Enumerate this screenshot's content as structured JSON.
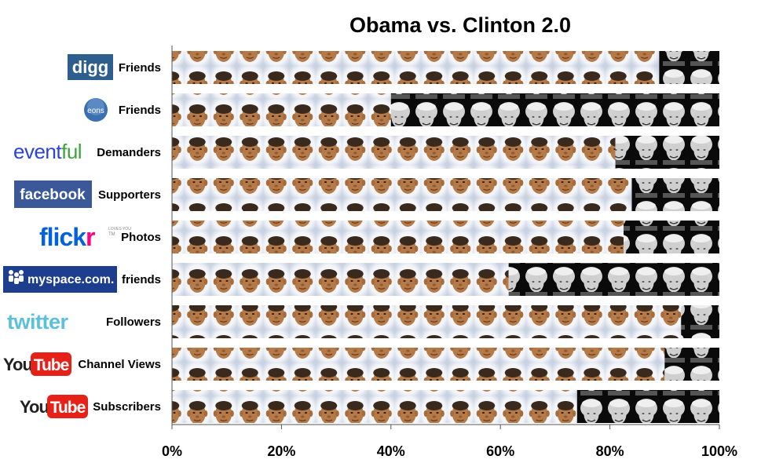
{
  "chart_data": {
    "type": "bar",
    "orientation": "horizontal",
    "stacked": "percent",
    "title": "Obama vs. Clinton 2.0",
    "xlim": [
      0,
      100
    ],
    "x_ticks": [
      "0%",
      "20%",
      "40%",
      "60%",
      "80%",
      "100%"
    ],
    "grid": false,
    "categories": [
      {
        "service": "digg",
        "metric": "Friends"
      },
      {
        "service": "eons",
        "metric": "Friends"
      },
      {
        "service": "eventful",
        "metric": "Demanders"
      },
      {
        "service": "facebook",
        "metric": "Supporters"
      },
      {
        "service": "flickr",
        "metric": "Photos"
      },
      {
        "service": "myspace.com.",
        "metric": "friends"
      },
      {
        "service": "twitter",
        "metric": "Followers"
      },
      {
        "service": "YouTube",
        "metric": "Channel Views"
      },
      {
        "service": "YouTube",
        "metric": "Subscribers"
      }
    ],
    "series": [
      {
        "values": [
          89,
          40,
          81,
          84,
          82.5,
          61.5,
          93,
          90,
          74
        ],
        "color": "#c8874e",
        "fill": "obama-face-icon"
      },
      {
        "values": [
          11,
          60,
          19,
          16,
          17.5,
          38.5,
          7,
          10,
          26
        ],
        "color": "#111111",
        "fill": "clinton-face-icon"
      }
    ]
  },
  "logos": {
    "digg": {
      "text": "digg",
      "bg": "#2d5e8e",
      "fg": "#ffffff"
    },
    "eons": {
      "text": "eons",
      "bg": "#3a6fb0",
      "fg": "#ffffff"
    },
    "eventful": {
      "text": "eventful",
      "colors": [
        "#2b43d6",
        "#3aa43a"
      ]
    },
    "facebook": {
      "text": "facebook",
      "bg": "#3b5998",
      "fg": "#ffffff"
    },
    "flickr": {
      "text": "flickr",
      "colors": [
        "#0063dc",
        "#ff0084"
      ],
      "tagline": "LOVES YOU"
    },
    "myspace": {
      "text": "myspace.com.",
      "bg": "#1d3d8f",
      "fg": "#ffffff"
    },
    "twitter": {
      "text": "twitter",
      "color": "#5bc0de"
    },
    "youtube": {
      "you": "You",
      "tube": "Tube",
      "red": "#e62117"
    }
  }
}
